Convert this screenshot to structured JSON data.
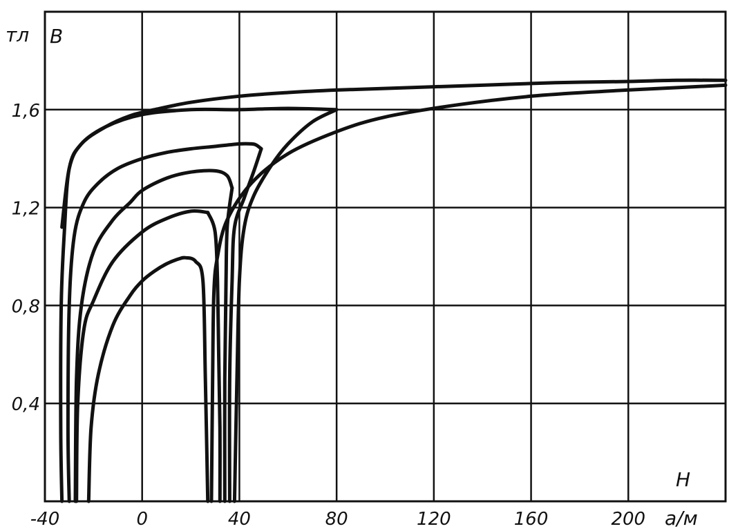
{
  "chart_data": {
    "type": "line",
    "title": "",
    "xlabel": "H",
    "x_unit": "а/м",
    "ylabel": "B",
    "y_unit": "тл",
    "xlim": [
      -40,
      240
    ],
    "ylim": [
      0,
      2.0
    ],
    "x_ticks": [
      {
        "value": -40,
        "label": "-40"
      },
      {
        "value": 0,
        "label": "0"
      },
      {
        "value": 40,
        "label": "40"
      },
      {
        "value": 80,
        "label": "80"
      },
      {
        "value": 120,
        "label": "120"
      },
      {
        "value": 160,
        "label": "160"
      },
      {
        "value": 200,
        "label": "200"
      }
    ],
    "y_ticks": [
      {
        "value": 0.4,
        "label": "0,4"
      },
      {
        "value": 0.8,
        "label": "0,8"
      },
      {
        "value": 1.2,
        "label": "1,2"
      },
      {
        "value": 1.6,
        "label": "1,6"
      }
    ],
    "x_grid": [
      0,
      40,
      80,
      120,
      160,
      200
    ],
    "y_grid": [
      0.4,
      0.8,
      1.2,
      1.6
    ],
    "grid": true,
    "legend": "none",
    "series": [
      {
        "x": [
          -33,
          -33.5,
          -33.3,
          -32,
          -30,
          -25,
          -15,
          -5,
          5,
          20,
          40,
          60,
          80,
          110,
          140,
          170,
          200,
          220,
          240
        ],
        "y": [
          0.0,
          0.3,
          0.8,
          1.1,
          1.36,
          1.46,
          1.53,
          1.575,
          1.6,
          1.63,
          1.655,
          1.67,
          1.68,
          1.69,
          1.7,
          1.71,
          1.715,
          1.72,
          1.72
        ]
      },
      {
        "x": [
          -33,
          -30,
          -25,
          -15,
          0,
          20,
          40,
          60,
          80
        ],
        "y": [
          1.12,
          1.36,
          1.46,
          1.53,
          1.58,
          1.6,
          1.6,
          1.605,
          1.6
        ]
      },
      {
        "x": [
          80,
          70,
          60,
          53,
          46,
          42,
          40,
          39,
          38
        ],
        "y": [
          1.6,
          1.55,
          1.46,
          1.37,
          1.25,
          1.12,
          0.9,
          0.5,
          0.0
        ]
      },
      {
        "x": [
          -30,
          -30.5,
          -30,
          -28,
          -24,
          -18,
          -10,
          0,
          10,
          20,
          30,
          40,
          45,
          47,
          49
        ],
        "y": [
          0.0,
          0.3,
          0.8,
          1.08,
          1.22,
          1.3,
          1.36,
          1.4,
          1.425,
          1.44,
          1.45,
          1.46,
          1.46,
          1.455,
          1.44
        ]
      },
      {
        "x": [
          49,
          46,
          42,
          38,
          37,
          36,
          36
        ],
        "y": [
          1.44,
          1.35,
          1.24,
          1.12,
          0.9,
          0.5,
          0.0
        ]
      },
      {
        "x": [
          -27.5,
          -27,
          -25,
          -20,
          -12,
          -5,
          0,
          10,
          20,
          30,
          35,
          37
        ],
        "y": [
          0.0,
          0.5,
          0.8,
          1.02,
          1.15,
          1.22,
          1.27,
          1.32,
          1.345,
          1.35,
          1.33,
          1.28
        ]
      },
      {
        "x": [
          37,
          35,
          34.5,
          34,
          34
        ],
        "y": [
          1.28,
          1.12,
          0.9,
          0.5,
          0.0
        ]
      },
      {
        "x": [
          -27,
          -26.5,
          -24,
          -20,
          -12,
          0,
          10,
          20,
          27
        ],
        "y": [
          0.0,
          0.4,
          0.7,
          0.82,
          0.98,
          1.1,
          1.155,
          1.185,
          1.18
        ]
      },
      {
        "x": [
          27,
          30,
          31,
          31.5,
          32,
          32
        ],
        "y": [
          1.18,
          1.1,
          0.9,
          0.6,
          0.3,
          0.0
        ]
      },
      {
        "x": [
          -22,
          -21,
          -18,
          -12,
          -5,
          0,
          5,
          10,
          15,
          18,
          22,
          25,
          26,
          27
        ],
        "y": [
          0.0,
          0.3,
          0.52,
          0.72,
          0.84,
          0.9,
          0.94,
          0.97,
          0.99,
          0.995,
          0.98,
          0.9,
          0.5,
          0.0
        ]
      },
      {
        "x": [
          28.5,
          29,
          29.5,
          31,
          35,
          45,
          60,
          80,
          100,
          130,
          160,
          190,
          220,
          240
        ],
        "y": [
          0.0,
          0.5,
          0.85,
          1.0,
          1.15,
          1.3,
          1.42,
          1.51,
          1.57,
          1.62,
          1.655,
          1.675,
          1.69,
          1.7
        ]
      }
    ]
  }
}
